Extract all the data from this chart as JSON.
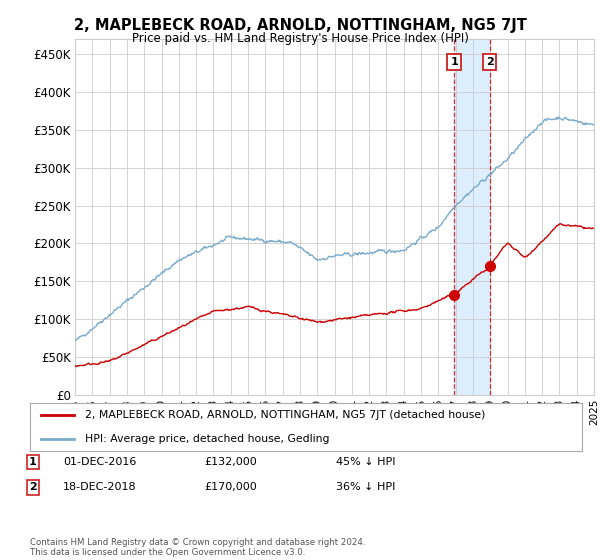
{
  "title": "2, MAPLEBECK ROAD, ARNOLD, NOTTINGHAM, NG5 7JT",
  "subtitle": "Price paid vs. HM Land Registry's House Price Index (HPI)",
  "ylabel_ticks": [
    "£0",
    "£50K",
    "£100K",
    "£150K",
    "£200K",
    "£250K",
    "£300K",
    "£350K",
    "£400K",
    "£450K"
  ],
  "ylim": [
    0,
    470000
  ],
  "sale1": {
    "date_num": 2016.92,
    "price": 132000,
    "label": "1"
  },
  "sale2": {
    "date_num": 2018.96,
    "price": 170000,
    "label": "2"
  },
  "legend_line1": "2, MAPLEBECK ROAD, ARNOLD, NOTTINGHAM, NG5 7JT (detached house)",
  "legend_line2": "HPI: Average price, detached house, Gedling",
  "table_rows": [
    [
      "1",
      "01-DEC-2016",
      "£132,000",
      "45% ↓ HPI"
    ],
    [
      "2",
      "18-DEC-2018",
      "£170,000",
      "36% ↓ HPI"
    ]
  ],
  "footnote": "Contains HM Land Registry data © Crown copyright and database right 2024.\nThis data is licensed under the Open Government Licence v3.0.",
  "line_color_property": "#cc0000",
  "line_color_hpi": "#7aaccc",
  "shade_color": "#ddeeff",
  "background_color": "#ffffff",
  "grid_color": "#cccccc"
}
